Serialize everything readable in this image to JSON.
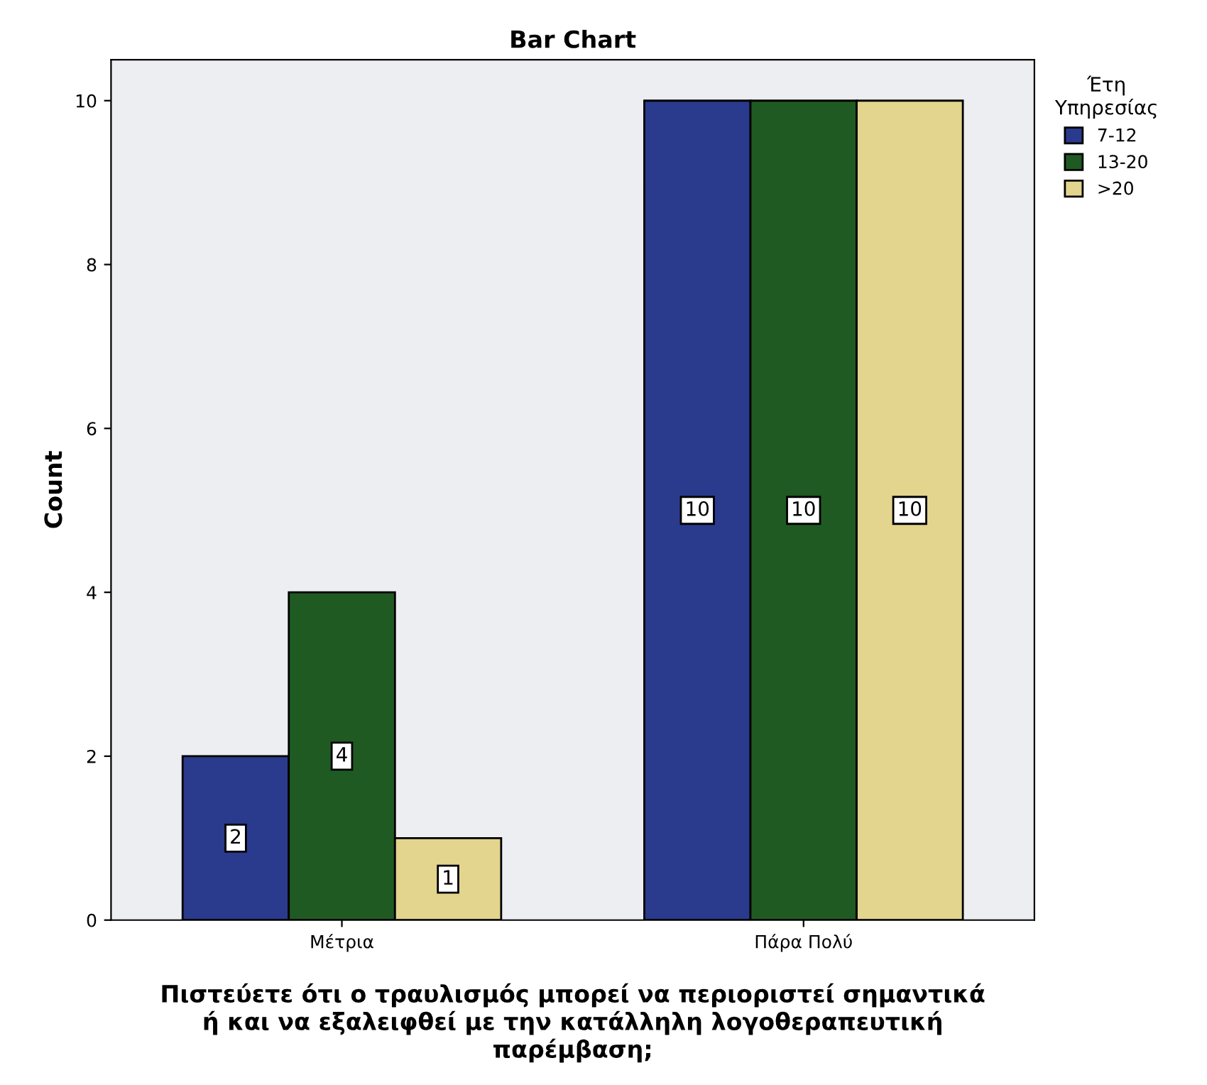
{
  "chart_data": {
    "type": "bar",
    "title": "Bar Chart",
    "xlabel": "Πιστεύετε ότι ο τραυλισμός μπορεί να περιοριστεί σημαντικά ή και να εξαλειφθεί με την κατάλληλη λογοθεραπευτική παρέμβαση;",
    "ylabel": "Count",
    "legend_title": "Έτη Υπηρεσίας",
    "categories": [
      "Μέτρια",
      "Πάρα Πολύ"
    ],
    "series": [
      {
        "name": "7-12",
        "color": "#2a3a8c",
        "values": [
          2,
          10
        ]
      },
      {
        "name": "13-20",
        "color": "#1f5a22",
        "values": [
          4,
          10
        ]
      },
      {
        "name": ">20",
        "color": "#e3d48e",
        "values": [
          1,
          10
        ]
      }
    ],
    "ylim": [
      0,
      10.5
    ],
    "yticks": [
      0,
      2,
      4,
      6,
      8,
      10
    ],
    "grid": false,
    "legend": "top right",
    "data_labels": true
  }
}
